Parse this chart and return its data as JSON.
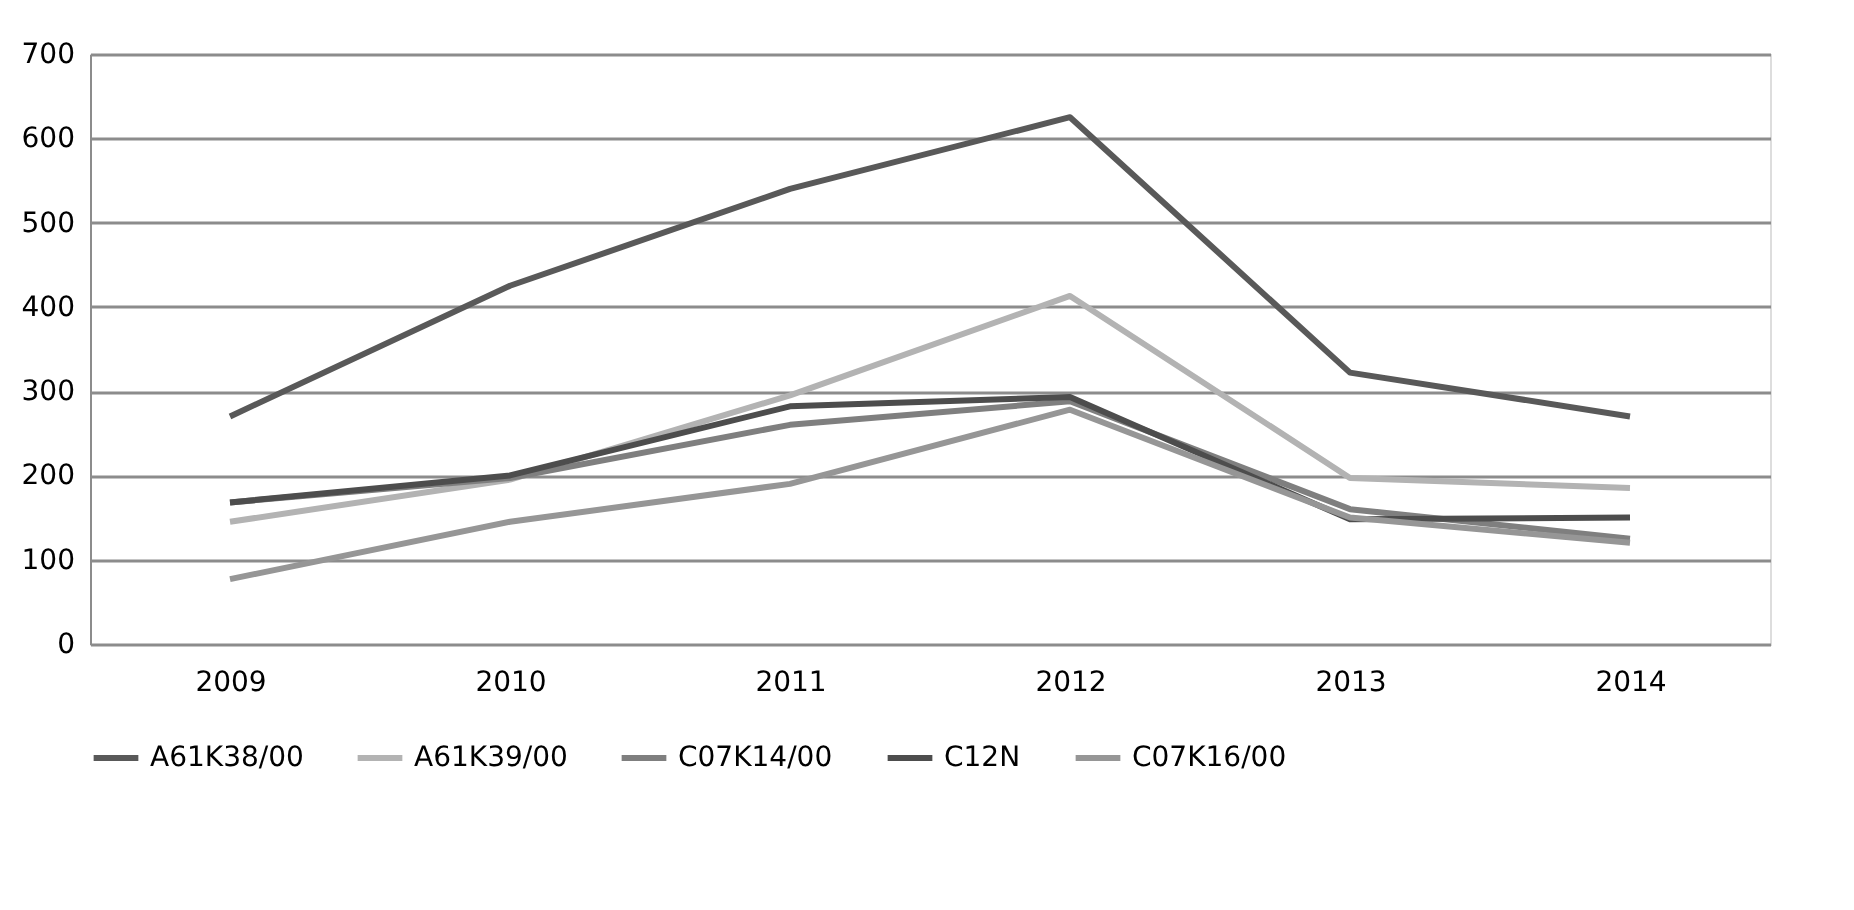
{
  "chart_data": {
    "type": "line",
    "categories": [
      "2009",
      "2010",
      "2011",
      "2012",
      "2013",
      "2014"
    ],
    "series": [
      {
        "name": "A61K38/00",
        "color": "#595959",
        "values": [
          270,
          425,
          540,
          625,
          322,
          270
        ]
      },
      {
        "name": "A61K39/00",
        "color": "#b3b3b3",
        "values": [
          145,
          195,
          295,
          413,
          197,
          185
        ]
      },
      {
        "name": "C07K14/00",
        "color": "#7f7f7f",
        "values": [
          168,
          197,
          260,
          288,
          160,
          125
        ]
      },
      {
        "name": "C12N",
        "color": "#4d4d4d",
        "values": [
          168,
          200,
          282,
          293,
          148,
          150
        ]
      },
      {
        "name": "C07K16/00",
        "color": "#969696",
        "values": [
          77,
          145,
          190,
          278,
          150,
          120
        ]
      }
    ],
    "ylim": [
      0,
      700
    ],
    "yticks": [
      0,
      100,
      200,
      300,
      400,
      500,
      600,
      700
    ],
    "grid": "y",
    "legend": "bottom",
    "marker": "none",
    "line_style": "solid"
  }
}
